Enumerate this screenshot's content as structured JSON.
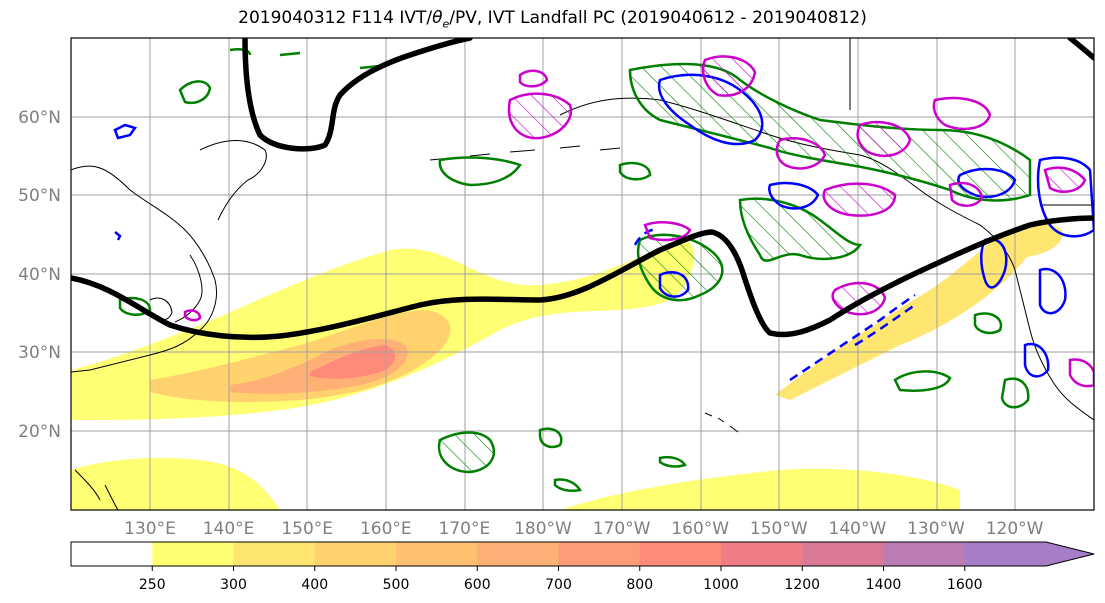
{
  "title": {
    "prefix": "2019040312 F114 IVT/",
    "theta": "θ",
    "theta_sub": "e",
    "suffix": "/PV, IVT Landfall PC (2019040612 - 2019040812)"
  },
  "map": {
    "lat_labels": [
      "60°N",
      "50°N",
      "40°N",
      "30°N",
      "20°N"
    ],
    "lon_labels": [
      "130°E",
      "140°E",
      "150°E",
      "160°E",
      "170°E",
      "180°W",
      "170°W",
      "160°W",
      "150°W",
      "140°W",
      "130°W",
      "120°W"
    ],
    "extent": {
      "lon_min": 120,
      "lon_max": 250,
      "lat_min": 10,
      "lat_max": 70
    },
    "fields": [
      "IVT shading",
      "theta_e contours",
      "PV contour",
      "IVT landfall PC contours"
    ],
    "colors": {
      "pv_contour": "#000000",
      "positive_pc": "#0000ff",
      "negative_pc": "#cc00cc",
      "theta_e": "#008000",
      "coastline": "#000000",
      "grid": "#a0a0a0"
    }
  },
  "colorbar": {
    "ticks": [
      "250",
      "300",
      "400",
      "500",
      "600",
      "700",
      "800",
      "1000",
      "1200",
      "1400",
      "1600"
    ],
    "bins": [
      {
        "from": "0",
        "to": "250",
        "color": "#ffffff"
      },
      {
        "from": "250",
        "to": "300",
        "color": "#ffff73"
      },
      {
        "from": "300",
        "to": "400",
        "color": "#ffe670"
      },
      {
        "from": "400",
        "to": "500",
        "color": "#ffd26e"
      },
      {
        "from": "500",
        "to": "600",
        "color": "#ffc070"
      },
      {
        "from": "600",
        "to": "700",
        "color": "#ffb075"
      },
      {
        "from": "700",
        "to": "800",
        "color": "#ff9c78"
      },
      {
        "from": "800",
        "to": "1000",
        "color": "#ff8a7a"
      },
      {
        "from": "1000",
        "to": "1200",
        "color": "#f07c86"
      },
      {
        "from": "1200",
        "to": "1400",
        "color": "#d97996"
      },
      {
        "from": "1400",
        "to": "1600",
        "color": "#bb7bb3"
      },
      {
        "from": "1600",
        "to": "",
        "color": "#a67ec7"
      }
    ]
  }
}
